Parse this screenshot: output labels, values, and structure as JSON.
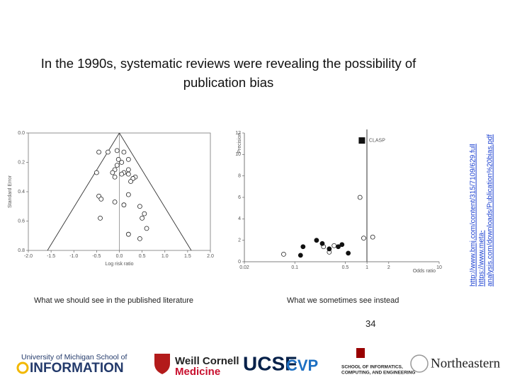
{
  "slide": {
    "title": "In the 1990s, systematic reviews were revealing the possibility of publication bias",
    "captions": [
      "What we should see in the published literature",
      "What we sometimes see instead"
    ],
    "page_number": "34",
    "urls": [
      "http://www.bmj.com/content/315/7109/629.full",
      "https://www.meta-",
      "analysis.com/downloads/Publication%20bias.pdf"
    ],
    "logos": {
      "umich": [
        "University of Michigan School of",
        "INFORMATION"
      ],
      "weill": [
        "Weill Cornell",
        "Medicine"
      ],
      "ucsf": "UCSF",
      "cvp": "CVP",
      "iu": [
        "SCHOOL OF INFORMATICS,",
        "COMPUTING, AND ENGINEERING"
      ],
      "northeastern": "Northeastern"
    }
  },
  "chart_data": [
    {
      "type": "scatter",
      "xlabel": "Log risk ratio",
      "ylabel": "Standard Error",
      "xlim": [
        -2,
        2
      ],
      "ylim": [
        0,
        0.8
      ],
      "y_reversed": true,
      "xticks": [
        {
          "value": -2,
          "label": "-2.0"
        },
        {
          "value": -1.5,
          "label": "-1.5"
        },
        {
          "value": -1,
          "label": "-1.0"
        },
        {
          "value": -0.5,
          "label": "-0.5"
        },
        {
          "value": 0,
          "label": "0.0"
        },
        0.5,
        {
          "value": 1,
          "label": "1.0"
        },
        1.5,
        {
          "value": 2,
          "label": "2.0"
        }
      ],
      "yticks": [
        {
          "value": 0,
          "label": "0.0"
        },
        0.2,
        0.4,
        0.6,
        0.8
      ],
      "series": [
        {
          "marker": "open-circle",
          "color": "#222222",
          "x": [
            -0.45,
            -0.25,
            -0.05,
            0.1,
            -0.02,
            0.05,
            0.2,
            -0.05,
            -0.1,
            0.1,
            0.2,
            0.35,
            -0.5,
            0.3,
            -0.15,
            0.05,
            -0.1,
            0.2,
            0.25,
            -0.45,
            -0.4,
            0.2,
            -0.1,
            0.1,
            0.45,
            0.55,
            0.5,
            -0.42,
            0.6,
            0.2,
            0.45
          ],
          "values": [
            0.13,
            0.13,
            0.12,
            0.13,
            0.18,
            0.2,
            0.18,
            0.22,
            0.25,
            0.27,
            0.25,
            0.3,
            0.27,
            0.31,
            0.27,
            0.28,
            0.3,
            0.28,
            0.33,
            0.43,
            0.45,
            0.42,
            0.47,
            0.49,
            0.5,
            0.55,
            0.58,
            0.58,
            0.65,
            0.69,
            0.72
          ]
        }
      ]
    },
    {
      "type": "scatter",
      "xlabel": "Odds ratio",
      "ylabel": "Precision",
      "log_x": true,
      "xlim": [
        0.02,
        10
      ],
      "ylim": [
        0,
        12
      ],
      "xticks": [
        0.02,
        0.1,
        0.5,
        1,
        2,
        10
      ],
      "yticks": [
        0,
        2,
        4,
        6,
        8,
        10,
        12
      ],
      "series": [
        {
          "marker": "open-circle",
          "color": "#222222",
          "x": [
            0.07,
            0.25,
            0.3,
            0.35,
            0.8,
            0.9,
            1.2
          ],
          "values": [
            0.7,
            1.4,
            0.9,
            1.5,
            6.0,
            2.2,
            2.3
          ]
        },
        {
          "marker": "filled-circle",
          "color": "#111111",
          "x": [
            0.12,
            0.13,
            0.2,
            0.24,
            0.3,
            0.4,
            0.45,
            0.55
          ],
          "values": [
            0.6,
            1.4,
            2.0,
            1.7,
            1.2,
            1.4,
            1.6,
            0.8
          ]
        },
        {
          "name": "CLASP",
          "marker": "square",
          "color": "#111111",
          "x": [
            0.85
          ],
          "values": [
            11.3
          ]
        }
      ]
    }
  ]
}
